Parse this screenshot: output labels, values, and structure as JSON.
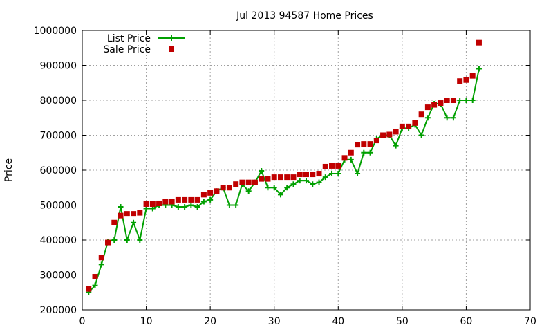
{
  "chart_data": {
    "type": "line",
    "title": "Jul 2013 94587 Home Prices",
    "xlabel": "",
    "ylabel": "Price",
    "xlim": [
      0,
      70
    ],
    "ylim": [
      200000,
      1000000
    ],
    "x_ticks": [
      0,
      10,
      20,
      30,
      40,
      50,
      60,
      70
    ],
    "y_ticks": [
      200000,
      300000,
      400000,
      500000,
      600000,
      700000,
      800000,
      900000,
      1000000
    ],
    "grid": true,
    "legend_position": "top-left",
    "x": [
      1,
      2,
      3,
      4,
      5,
      6,
      7,
      8,
      9,
      10,
      11,
      12,
      13,
      14,
      15,
      16,
      17,
      18,
      19,
      20,
      21,
      22,
      23,
      24,
      25,
      26,
      27,
      28,
      29,
      30,
      31,
      32,
      33,
      34,
      35,
      36,
      37,
      38,
      39,
      40,
      41,
      42,
      43,
      44,
      45,
      46,
      47,
      48,
      49,
      50,
      51,
      52,
      53,
      54,
      55,
      56,
      57,
      58,
      59,
      60,
      61,
      62
    ],
    "series": [
      {
        "name": "List Price",
        "style": "line-plus",
        "color": "#00a000",
        "values": [
          250000,
          270000,
          330000,
          395000,
          400000,
          495000,
          400000,
          450000,
          400000,
          490000,
          490000,
          500000,
          500000,
          500000,
          495000,
          495000,
          500000,
          495000,
          510000,
          515000,
          540000,
          550000,
          500000,
          500000,
          560000,
          540000,
          565000,
          598000,
          550000,
          550000,
          530000,
          550000,
          560000,
          570000,
          570000,
          560000,
          565000,
          580000,
          590000,
          590000,
          630000,
          630000,
          590000,
          650000,
          650000,
          690000,
          700000,
          700000,
          670000,
          720000,
          720000,
          730000,
          700000,
          750000,
          790000,
          790000,
          750000,
          750000,
          800000,
          800000,
          800000,
          890000
        ]
      },
      {
        "name": "Sale Price",
        "style": "square",
        "color": "#c00000",
        "values": [
          260000,
          295000,
          350000,
          393000,
          450000,
          470000,
          475000,
          475000,
          478000,
          503000,
          503000,
          505000,
          510000,
          510000,
          515000,
          515000,
          515000,
          515000,
          530000,
          535000,
          540000,
          550000,
          550000,
          560000,
          565000,
          565000,
          565000,
          575000,
          575000,
          580000,
          580000,
          580000,
          580000,
          588000,
          588000,
          588000,
          590000,
          610000,
          612000,
          612000,
          635000,
          650000,
          673000,
          675000,
          675000,
          685000,
          700000,
          702000,
          710000,
          725000,
          725000,
          735000,
          760000,
          780000,
          787000,
          792000,
          800000,
          800000,
          855000,
          858000,
          870000,
          965000
        ]
      }
    ]
  }
}
